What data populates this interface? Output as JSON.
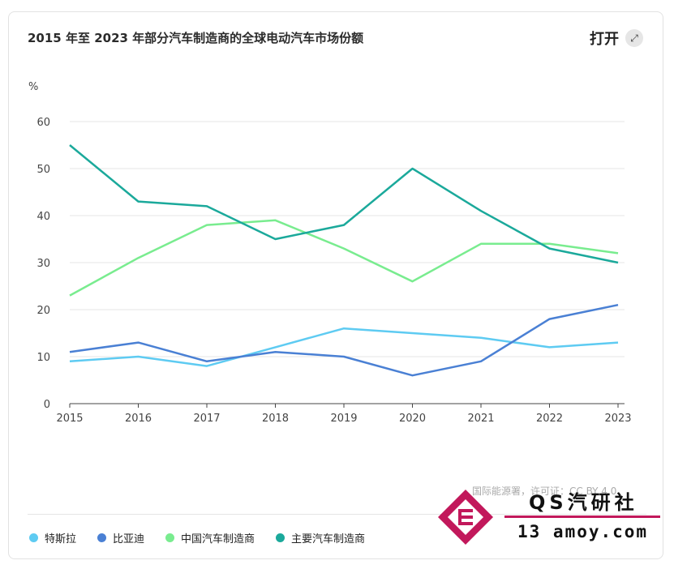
{
  "header": {
    "title": "2015 年至 2023 年部分汽车制造商的全球电动汽车市场份额",
    "open_label": "打开",
    "open_icon": "expand-icon"
  },
  "chart_data": {
    "type": "line",
    "title": "2015 年至 2023 年部分汽车制造商的全球电动汽车市场份额",
    "ylabel": "%",
    "xlabel": "",
    "x": [
      "2015",
      "2016",
      "2017",
      "2018",
      "2019",
      "2020",
      "2021",
      "2022",
      "2023"
    ],
    "ylim": [
      0,
      60
    ],
    "yticks": [
      "0",
      "10",
      "20",
      "30",
      "40",
      "50",
      "60"
    ],
    "grid": true,
    "legend": "bottom",
    "series": [
      {
        "name": "特斯拉",
        "color": "#5ecbf2",
        "values": [
          9,
          10,
          8,
          12,
          16,
          15,
          14,
          12,
          13
        ]
      },
      {
        "name": "比亚迪",
        "color": "#4a80d4",
        "values": [
          11,
          13,
          9,
          11,
          10,
          6,
          9,
          18,
          21
        ]
      },
      {
        "name": "中国汽车制造商",
        "color": "#79ec8f",
        "values": [
          23,
          31,
          38,
          39,
          33,
          26,
          34,
          34,
          32
        ]
      },
      {
        "name": "主要汽车制造商",
        "color": "#1ba99b",
        "values": [
          55,
          43,
          42,
          35,
          38,
          50,
          41,
          33,
          30
        ]
      }
    ]
  },
  "footer": {
    "source": "国际能源署，许可证：CC BY 4.0"
  },
  "watermark": {
    "name": "QS汽研社",
    "url": "13 amoy.com"
  }
}
